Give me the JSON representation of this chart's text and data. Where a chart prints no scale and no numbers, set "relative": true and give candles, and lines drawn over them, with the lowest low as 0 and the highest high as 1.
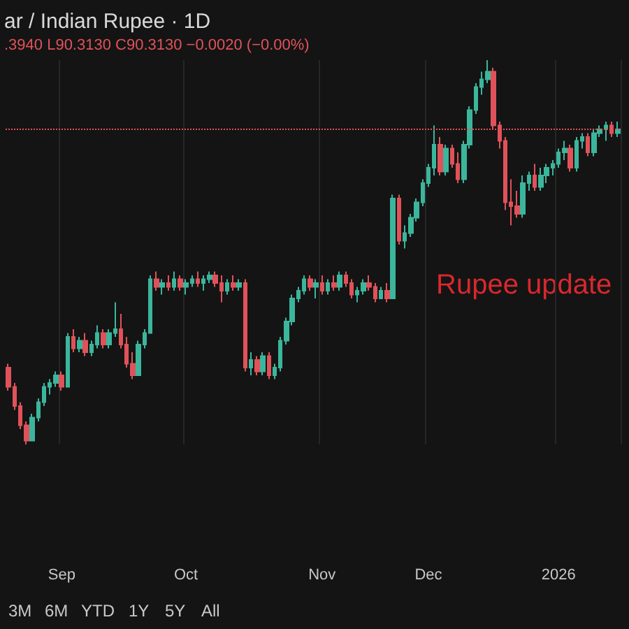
{
  "chart_data": {
    "type": "candlestick",
    "title": "ar / Indian Rupee · 1D",
    "subtitle": ".3940 L90.3130 C90.3130 −0.0020 (−0.00%)",
    "relative": true,
    "grid": "x",
    "annotations": [
      "Rupee update",
      "3M",
      "6M",
      "YTD",
      "1Y",
      "5Y",
      "All"
    ],
    "ref_lines": [
      {
        "axis": "y",
        "value": 0.82,
        "color": "#e0525a",
        "line_style": "dotted"
      }
    ],
    "categories": [
      null,
      null,
      null,
      null,
      null,
      null,
      null,
      null,
      null,
      "Sep",
      null,
      null,
      null,
      null,
      null,
      null,
      null,
      null,
      null,
      null,
      null,
      null,
      null,
      null,
      null,
      null,
      null,
      null,
      null,
      null,
      "Oct",
      null,
      null,
      null,
      null,
      null,
      null,
      null,
      null,
      null,
      null,
      null,
      null,
      null,
      null,
      null,
      null,
      null,
      null,
      null,
      null,
      null,
      null,
      "Nov",
      null,
      null,
      null,
      null,
      null,
      null,
      null,
      null,
      null,
      null,
      null,
      null,
      null,
      null,
      null,
      null,
      null,
      "Dec",
      null,
      null,
      null,
      null,
      null,
      null,
      null,
      null,
      null,
      null,
      null,
      null,
      null,
      null,
      null,
      null,
      null,
      null,
      null,
      null,
      null,
      "2026",
      null,
      null,
      null,
      null,
      null,
      null,
      null,
      null,
      null,
      null
    ],
    "ohlc": [
      [
        0.2,
        0.21,
        0.14,
        0.15
      ],
      [
        0.15,
        0.16,
        0.09,
        0.1
      ],
      [
        0.1,
        0.11,
        0.04,
        0.05
      ],
      [
        0.05,
        0.06,
        0,
        0.01
      ],
      [
        0.01,
        0.08,
        0.01,
        0.07
      ],
      [
        0.07,
        0.12,
        0.06,
        0.11
      ],
      [
        0.11,
        0.16,
        0.1,
        0.15
      ],
      [
        0.15,
        0.17,
        0.13,
        0.16
      ],
      [
        0.16,
        0.19,
        0.15,
        0.18
      ],
      [
        0.18,
        0.19,
        0.14,
        0.15
      ],
      [
        0.15,
        0.29,
        0.15,
        0.28
      ],
      [
        0.28,
        0.3,
        0.24,
        0.25
      ],
      [
        0.25,
        0.28,
        0.24,
        0.27
      ],
      [
        0.27,
        0.29,
        0.23,
        0.24
      ],
      [
        0.24,
        0.27,
        0.23,
        0.26
      ],
      [
        0.26,
        0.31,
        0.25,
        0.29
      ],
      [
        0.29,
        0.3,
        0.25,
        0.26
      ],
      [
        0.26,
        0.3,
        0.25,
        0.29
      ],
      [
        0.29,
        0.37,
        0.28,
        0.3
      ],
      [
        0.3,
        0.34,
        0.25,
        0.26
      ],
      [
        0.26,
        0.28,
        0.2,
        0.21
      ],
      [
        0.21,
        0.24,
        0.17,
        0.18
      ],
      [
        0.18,
        0.27,
        0.18,
        0.26
      ],
      [
        0.26,
        0.3,
        0.25,
        0.29
      ],
      [
        0.29,
        0.44,
        0.29,
        0.43
      ],
      [
        0.43,
        0.45,
        0.4,
        0.41
      ],
      [
        0.41,
        0.43,
        0.39,
        0.42
      ],
      [
        0.42,
        0.44,
        0.4,
        0.41
      ],
      [
        0.41,
        0.45,
        0.4,
        0.43
      ],
      [
        0.43,
        0.44,
        0.4,
        0.41
      ],
      [
        0.41,
        0.43,
        0.39,
        0.42
      ],
      [
        0.42,
        0.44,
        0.41,
        0.43
      ],
      [
        0.43,
        0.45,
        0.41,
        0.42
      ],
      [
        0.42,
        0.44,
        0.4,
        0.43
      ],
      [
        0.43,
        0.45,
        0.42,
        0.44
      ],
      [
        0.44,
        0.45,
        0.41,
        0.42
      ],
      [
        0.42,
        0.44,
        0.37,
        0.4
      ],
      [
        0.4,
        0.43,
        0.39,
        0.42
      ],
      [
        0.42,
        0.44,
        0.4,
        0.41
      ],
      [
        0.41,
        0.43,
        0.4,
        0.42
      ],
      [
        0.42,
        0.43,
        0.19,
        0.2
      ],
      [
        0.2,
        0.24,
        0.18,
        0.22
      ],
      [
        0.22,
        0.23,
        0.18,
        0.19
      ],
      [
        0.19,
        0.24,
        0.18,
        0.23
      ],
      [
        0.23,
        0.24,
        0.17,
        0.18
      ],
      [
        0.18,
        0.21,
        0.17,
        0.2
      ],
      [
        0.2,
        0.28,
        0.19,
        0.27
      ],
      [
        0.27,
        0.33,
        0.26,
        0.32
      ],
      [
        0.32,
        0.39,
        0.31,
        0.38
      ],
      [
        0.38,
        0.41,
        0.37,
        0.4
      ],
      [
        0.4,
        0.44,
        0.39,
        0.43
      ],
      [
        0.43,
        0.44,
        0.4,
        0.41
      ],
      [
        0.41,
        0.43,
        0.38,
        0.42
      ],
      [
        0.42,
        0.44,
        0.39,
        0.4
      ],
      [
        0.4,
        0.43,
        0.39,
        0.42
      ],
      [
        0.42,
        0.44,
        0.4,
        0.41
      ],
      [
        0.41,
        0.45,
        0.4,
        0.44
      ],
      [
        0.44,
        0.45,
        0.41,
        0.42
      ],
      [
        0.42,
        0.43,
        0.38,
        0.39
      ],
      [
        0.39,
        0.41,
        0.37,
        0.4
      ],
      [
        0.4,
        0.43,
        0.39,
        0.42
      ],
      [
        0.42,
        0.44,
        0.4,
        0.41
      ],
      [
        0.41,
        0.42,
        0.37,
        0.38
      ],
      [
        0.38,
        0.41,
        0.38,
        0.4
      ],
      [
        0.4,
        0.42,
        0.37,
        0.38
      ],
      [
        0.38,
        0.65,
        0.38,
        0.64
      ],
      [
        0.64,
        0.65,
        0.52,
        0.53
      ],
      [
        0.53,
        0.57,
        0.51,
        0.55
      ],
      [
        0.55,
        0.6,
        0.54,
        0.59
      ],
      [
        0.59,
        0.64,
        0.58,
        0.63
      ],
      [
        0.63,
        0.69,
        0.62,
        0.68
      ],
      [
        0.68,
        0.73,
        0.67,
        0.72
      ],
      [
        0.72,
        0.83,
        0.7,
        0.78
      ],
      [
        0.78,
        0.8,
        0.7,
        0.71
      ],
      [
        0.71,
        0.78,
        0.7,
        0.77
      ],
      [
        0.77,
        0.78,
        0.72,
        0.73
      ],
      [
        0.73,
        0.76,
        0.68,
        0.69
      ],
      [
        0.69,
        0.79,
        0.68,
        0.78
      ],
      [
        0.78,
        0.88,
        0.77,
        0.87
      ],
      [
        0.87,
        0.94,
        0.86,
        0.93
      ],
      [
        0.93,
        0.97,
        0.91,
        0.95
      ],
      [
        0.95,
        1,
        0.94,
        0.97
      ],
      [
        0.97,
        0.98,
        0.82,
        0.83
      ],
      [
        0.83,
        0.84,
        0.77,
        0.79
      ],
      [
        0.79,
        0.8,
        0.61,
        0.63
      ],
      [
        0.63,
        0.69,
        0.57,
        0.62
      ],
      [
        0.62,
        0.66,
        0.59,
        0.6
      ],
      [
        0.6,
        0.7,
        0.59,
        0.68
      ],
      [
        0.68,
        0.71,
        0.66,
        0.7
      ],
      [
        0.7,
        0.73,
        0.66,
        0.67
      ],
      [
        0.67,
        0.72,
        0.66,
        0.7
      ],
      [
        0.7,
        0.73,
        0.68,
        0.72
      ],
      [
        0.72,
        0.74,
        0.7,
        0.73
      ],
      [
        0.73,
        0.77,
        0.72,
        0.76
      ],
      [
        0.76,
        0.79,
        0.74,
        0.77
      ],
      [
        0.77,
        0.78,
        0.71,
        0.72
      ],
      [
        0.72,
        0.8,
        0.71,
        0.79
      ],
      [
        0.79,
        0.81,
        0.77,
        0.8
      ],
      [
        0.8,
        0.81,
        0.75,
        0.76
      ],
      [
        0.76,
        0.82,
        0.75,
        0.81
      ],
      [
        0.81,
        0.83,
        0.8,
        0.82
      ],
      [
        0.82,
        0.84,
        0.79,
        0.83
      ],
      [
        0.83,
        0.84,
        0.8,
        0.81
      ],
      [
        0.81,
        0.84,
        0.8,
        0.82
      ]
    ]
  }
}
